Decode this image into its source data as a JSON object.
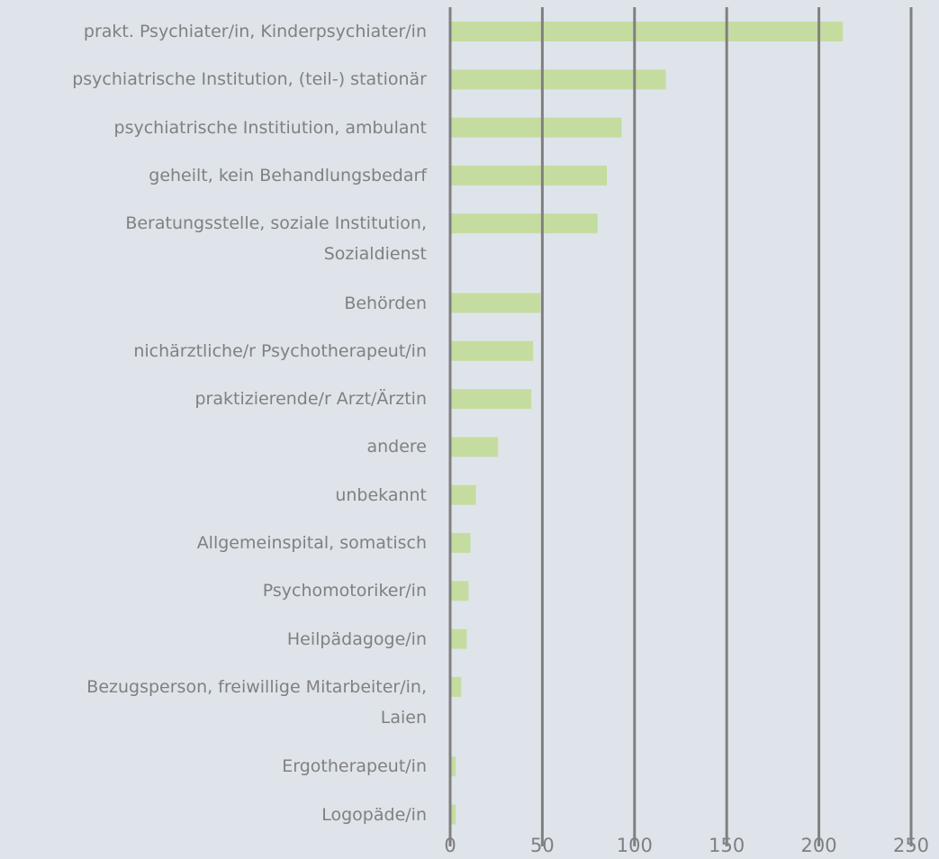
{
  "chart_data": {
    "type": "bar",
    "orientation": "horizontal",
    "categories": [
      "prakt. Psychiater/in, Kinderpsychiater/in",
      "psychiatrische Institution, (teil-) stationär",
      "psychiatrische Institiution, ambulant",
      "geheilt, kein Behandlungsbedarf",
      "Beratungsstelle, soziale Institution,\nSozialdienst",
      "Behörden",
      "nichärztliche/r Psychotherapeut/in",
      "praktizierende/r Arzt/Ärztin",
      "andere",
      "unbekannt",
      "Allgemeinspital, somatisch",
      "Psychomotoriker/in",
      "Heilpädagoge/in",
      "Bezugsperson, freiwillige Mitarbeiter/in,\nLaien",
      "Ergotherapeut/in",
      "Logopäde/in"
    ],
    "values": [
      213,
      117,
      93,
      85,
      80,
      49,
      45,
      44,
      26,
      14,
      11,
      10,
      9,
      6,
      3,
      3
    ],
    "color": "#c5dca0",
    "xlim": [
      0,
      250
    ],
    "xticks": [
      0,
      50,
      100,
      150,
      200,
      250
    ],
    "grid": true,
    "grid_color": "#808080"
  }
}
